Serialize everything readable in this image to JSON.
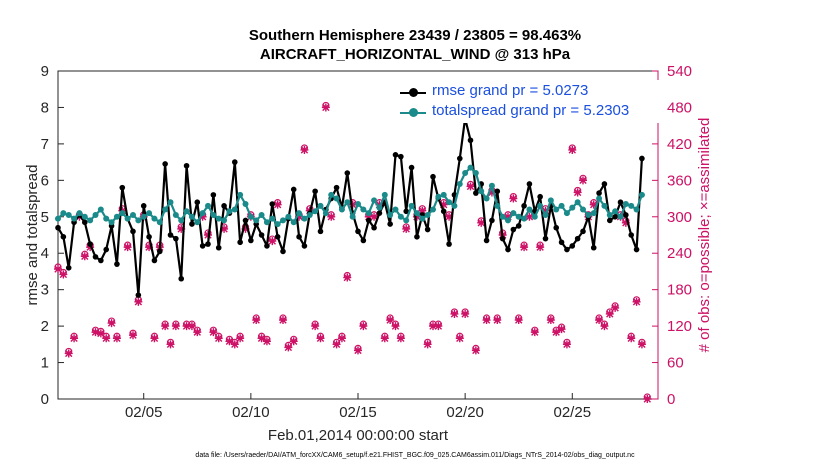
{
  "title_line1": "Southern Hemisphere 23439 / 23805 = 98.463%",
  "title_line2": "AIRCRAFT_HORIZONTAL_WIND @ 313 hPa",
  "footnote": "data file: /Users/raeder/DAI/ATM_forcXX/CAM6_setup/f.e21.FHIST_BGC.f09_025.CAM6assim.011/Diags_NTrS_2014-02/obs_diag_output.nc",
  "colors": {
    "rmse": "#000000",
    "spread": "#1a8a8a",
    "obs": "#cc1166",
    "legend_text": "#1a4fe0"
  },
  "chart_data": {
    "type": "line",
    "xlabel": "Feb.01,2014 00:00:00 start",
    "ylabel": "rmse and totalspread",
    "y2label": "# of obs: o=possible; ×=assimilated",
    "xlim": [
      1,
      29
    ],
    "ylim": [
      0,
      9
    ],
    "y2lim": [
      0,
      540
    ],
    "xticks": [
      5,
      10,
      15,
      20,
      25
    ],
    "xtick_labels": [
      "02/05",
      "02/10",
      "02/15",
      "02/20",
      "02/25"
    ],
    "yticks": [
      0,
      1,
      2,
      3,
      4,
      5,
      6,
      7,
      8,
      9
    ],
    "y2ticks": [
      0,
      60,
      120,
      180,
      240,
      300,
      360,
      420,
      480,
      540
    ],
    "x_start": 1,
    "x_step": 0.25,
    "series": [
      {
        "name": "rmse grand pr = 5.0273",
        "axis": "left",
        "values": [
          4.7,
          4.45,
          3.6,
          4.85,
          5.05,
          4.85,
          4.25,
          3.9,
          3.8,
          4.1,
          4.75,
          3.7,
          5.8,
          4.95,
          4.6,
          2.85,
          5.3,
          4.45,
          3.8,
          4.05,
          6.45,
          4.5,
          4.4,
          3.3,
          6.4,
          4.8,
          5.4,
          4.2,
          4.25,
          5.6,
          4.15,
          5.3,
          5.1,
          6.5,
          4.3,
          4.9,
          4.35,
          4.8,
          4.5,
          4.2,
          5.35,
          4.45,
          4.05,
          4.95,
          5.75,
          4.45,
          4.2,
          5.1,
          5.7,
          4.6,
          5.2,
          5.5,
          5.8,
          5.25,
          6.2,
          5.1,
          4.6,
          4.35,
          4.9,
          4.7,
          5.1,
          5.4,
          4.8,
          6.7,
          6.65,
          5.15,
          6.35,
          4.45,
          5.05,
          4.65,
          6.1,
          5.5,
          5.15,
          4.25,
          5.6,
          6.6,
          7.7,
          7.1,
          5.65,
          5.9,
          4.35,
          4.9,
          5.7,
          4.4,
          4.1,
          4.65,
          4.75,
          5.3,
          5.9,
          5.15,
          5.55,
          4.4,
          5.3,
          4.7,
          4.3,
          4.1,
          4.2,
          4.4,
          4.6,
          5.0,
          4.15,
          5.65,
          5.9,
          4.9,
          5.0,
          5.4,
          5.05,
          4.5,
          4.1,
          6.6
        ]
      },
      {
        "name": "totalspread grand pr = 5.2303",
        "axis": "left",
        "values": [
          4.95,
          5.1,
          5.05,
          4.95,
          5.1,
          5.0,
          4.9,
          5.05,
          5.2,
          4.95,
          4.85,
          5.0,
          5.1,
          4.95,
          5.05,
          4.9,
          5.0,
          5.1,
          4.95,
          4.85,
          5.2,
          5.4,
          5.05,
          4.9,
          5.15,
          5.0,
          4.85,
          5.1,
          5.3,
          5.05,
          4.95,
          4.9,
          5.15,
          5.2,
          5.6,
          5.35,
          5.0,
          4.9,
          5.05,
          4.85,
          4.95,
          4.8,
          4.9,
          5.0,
          4.85,
          5.1,
          4.95,
          5.05,
          5.15,
          5.3,
          5.1,
          5.6,
          5.5,
          5.2,
          5.4,
          5.0,
          5.35,
          5.2,
          5.1,
          5.45,
          5.25,
          5.6,
          5.05,
          5.2,
          5.0,
          4.9,
          5.3,
          5.1,
          4.95,
          5.05,
          5.2,
          5.55,
          5.6,
          5.4,
          5.3,
          5.9,
          6.2,
          6.35,
          6.2,
          5.7,
          5.5,
          5.85,
          5.3,
          5.0,
          4.9,
          5.1,
          5.0,
          4.95,
          5.2,
          5.0,
          5.3,
          5.05,
          5.45,
          5.2,
          5.3,
          5.1,
          5.25,
          5.4,
          5.2,
          5.05,
          5.1,
          5.5,
          5.3,
          5.05,
          5.15,
          5.0,
          5.35,
          5.3,
          5.2,
          5.6
        ]
      },
      {
        "name": "obs possible",
        "axis": "right",
        "marker": "o",
        "values": [
          214,
          205,
          75,
          100,
          300,
          235,
          250,
          110,
          108,
          100,
          125,
          100,
          310,
          250,
          105,
          160,
          300,
          250,
          100,
          250,
          120,
          90,
          120,
          280,
          120,
          120,
          110,
          300,
          270,
          110,
          100,
          280,
          95,
          90,
          100,
          280,
          300,
          130,
          100,
          95,
          260,
          320,
          130,
          85,
          95,
          300,
          410,
          310,
          120,
          100,
          480,
          300,
          90,
          100,
          200,
          320,
          80,
          120,
          300,
          300,
          320,
          100,
          130,
          120,
          100,
          280,
          470,
          300,
          310,
          90,
          120,
          120,
          320,
          300,
          140,
          100,
          140,
          350,
          80,
          290,
          130,
          340,
          130,
          270,
          300,
          330,
          130,
          250,
          300,
          110,
          250,
          310,
          130,
          110,
          115,
          90,
          410,
          340,
          360,
          300,
          320,
          130,
          120,
          140,
          150,
          300,
          290,
          100,
          160,
          90,
          0
        ]
      },
      {
        "name": "obs assimilated",
        "axis": "right",
        "marker": "x",
        "values": [
          214,
          205,
          75,
          100,
          300,
          235,
          250,
          110,
          108,
          100,
          125,
          100,
          310,
          250,
          105,
          160,
          300,
          250,
          100,
          250,
          120,
          90,
          120,
          280,
          120,
          120,
          110,
          300,
          270,
          110,
          100,
          280,
          95,
          90,
          100,
          280,
          300,
          130,
          100,
          95,
          260,
          320,
          130,
          85,
          95,
          300,
          410,
          310,
          120,
          100,
          480,
          300,
          90,
          100,
          200,
          320,
          80,
          120,
          300,
          300,
          320,
          100,
          130,
          120,
          100,
          280,
          470,
          300,
          310,
          90,
          120,
          120,
          320,
          300,
          140,
          100,
          140,
          350,
          80,
          290,
          130,
          340,
          130,
          270,
          300,
          330,
          130,
          250,
          300,
          110,
          250,
          310,
          130,
          110,
          115,
          90,
          410,
          340,
          360,
          300,
          320,
          130,
          120,
          140,
          150,
          300,
          290,
          100,
          160,
          90,
          0
        ]
      }
    ]
  }
}
